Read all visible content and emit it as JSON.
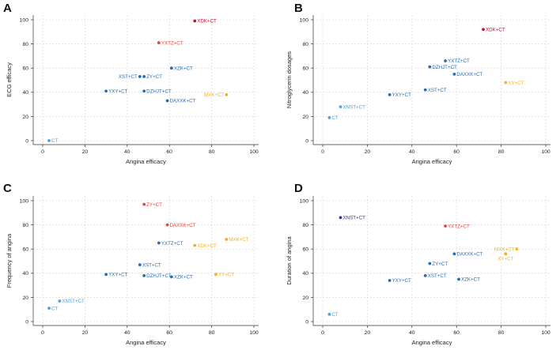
{
  "colors": {
    "red": "#c8102e",
    "orange": "#e8453c",
    "blue": "#2b6cb0",
    "lightblue": "#4fa3d9",
    "yellow": "#f0b323",
    "purple": "#4a2c8a"
  },
  "chart_data": [
    {
      "type": "scatter",
      "panel": "A",
      "xlabel": "Angina efficacy",
      "ylabel": "ECG efficacy",
      "xlim": [
        0,
        100
      ],
      "ylim": [
        0,
        100
      ],
      "xticks": [
        0,
        20,
        40,
        60,
        80,
        100
      ],
      "yticks": [
        0,
        20,
        40,
        60,
        80,
        100
      ],
      "points": [
        {
          "label": "XDK+CT",
          "x": 72,
          "y": 99,
          "color": "red",
          "side": "right"
        },
        {
          "label": "YXTZ+CT",
          "x": 55,
          "y": 81,
          "color": "orange",
          "side": "right"
        },
        {
          "label": "XZK+CT",
          "x": 61,
          "y": 60,
          "color": "blue",
          "side": "right"
        },
        {
          "label": "XST+CT",
          "x": 46,
          "y": 53,
          "color": "blue",
          "side": "left"
        },
        {
          "label": "ZY+CT",
          "x": 48,
          "y": 53,
          "color": "blue",
          "side": "right"
        },
        {
          "label": "YXY+CT",
          "x": 30,
          "y": 41,
          "color": "blue",
          "side": "right"
        },
        {
          "label": "DZHJT+CT",
          "x": 48,
          "y": 41,
          "color": "blue",
          "side": "right"
        },
        {
          "label": "DAXXK+CT",
          "x": 59,
          "y": 33,
          "color": "blue",
          "side": "right"
        },
        {
          "label": "MXK+CT",
          "x": 87,
          "y": 38,
          "color": "yellow",
          "side": "left"
        },
        {
          "label": "CT",
          "x": 3,
          "y": 0,
          "color": "lightblue",
          "side": "right"
        }
      ]
    },
    {
      "type": "scatter",
      "panel": "B",
      "xlabel": "Angina efficacy",
      "ylabel": "Nitroglycerin dosages",
      "xlim": [
        0,
        100
      ],
      "ylim": [
        0,
        100
      ],
      "xticks": [
        0,
        20,
        40,
        60,
        80,
        100
      ],
      "yticks": [
        0,
        20,
        40,
        60,
        80,
        100
      ],
      "points": [
        {
          "label": "XDK+CT",
          "x": 72,
          "y": 92,
          "color": "red",
          "side": "right"
        },
        {
          "label": "YXTZ+CT",
          "x": 55,
          "y": 66,
          "color": "blue",
          "side": "right"
        },
        {
          "label": "DZHJT+CT",
          "x": 48,
          "y": 61,
          "color": "blue",
          "side": "right"
        },
        {
          "label": "DAXXK+CT",
          "x": 59,
          "y": 55,
          "color": "blue",
          "side": "right"
        },
        {
          "label": "XY+CT",
          "x": 82,
          "y": 48,
          "color": "yellow",
          "side": "right"
        },
        {
          "label": "XST+CT",
          "x": 46,
          "y": 42,
          "color": "blue",
          "side": "right"
        },
        {
          "label": "YXY+CT",
          "x": 30,
          "y": 38,
          "color": "blue",
          "side": "right"
        },
        {
          "label": "XNST+CT",
          "x": 8,
          "y": 28,
          "color": "lightblue",
          "side": "right"
        },
        {
          "label": "CT",
          "x": 3,
          "y": 19,
          "color": "lightblue",
          "side": "right"
        }
      ]
    },
    {
      "type": "scatter",
      "panel": "C",
      "xlabel": "Angina efficacy",
      "ylabel": "Frequency of angina",
      "xlim": [
        0,
        100
      ],
      "ylim": [
        0,
        100
      ],
      "xticks": [
        0,
        20,
        40,
        60,
        80,
        100
      ],
      "yticks": [
        0,
        20,
        40,
        60,
        80,
        100
      ],
      "points": [
        {
          "label": "ZY+CT",
          "x": 48,
          "y": 97,
          "color": "orange",
          "side": "right"
        },
        {
          "label": "DAXXK+CT",
          "x": 59,
          "y": 80,
          "color": "orange",
          "side": "right"
        },
        {
          "label": "MXK+CT",
          "x": 87,
          "y": 68,
          "color": "yellow",
          "side": "right"
        },
        {
          "label": "XDK+CT",
          "x": 72,
          "y": 63,
          "color": "yellow",
          "side": "right"
        },
        {
          "label": "YXTZ+CT",
          "x": 55,
          "y": 65,
          "color": "blue",
          "side": "right"
        },
        {
          "label": "XST+CT",
          "x": 46,
          "y": 47,
          "color": "blue",
          "side": "right"
        },
        {
          "label": "YXY+CT",
          "x": 30,
          "y": 39,
          "color": "blue",
          "side": "right"
        },
        {
          "label": "DZHJT+CT",
          "x": 48,
          "y": 38,
          "color": "blue",
          "side": "right"
        },
        {
          "label": "XZK+CT",
          "x": 61,
          "y": 37,
          "color": "blue",
          "side": "right"
        },
        {
          "label": "XY+CT",
          "x": 82,
          "y": 39,
          "color": "yellow",
          "side": "right"
        },
        {
          "label": "XNST+CT",
          "x": 8,
          "y": 17,
          "color": "lightblue",
          "side": "right"
        },
        {
          "label": "CT",
          "x": 3,
          "y": 11,
          "color": "lightblue",
          "side": "right"
        }
      ]
    },
    {
      "type": "scatter",
      "panel": "D",
      "xlabel": "Angina efficacy",
      "ylabel": "Duration of angina",
      "xlim": [
        0,
        100
      ],
      "ylim": [
        0,
        100
      ],
      "xticks": [
        0,
        20,
        40,
        60,
        80,
        100
      ],
      "yticks": [
        0,
        20,
        40,
        60,
        80,
        100
      ],
      "points": [
        {
          "label": "XNST+CT",
          "x": 8,
          "y": 86,
          "color": "purple",
          "side": "right"
        },
        {
          "label": "YXTZ+CT",
          "x": 55,
          "y": 79,
          "color": "orange",
          "side": "right"
        },
        {
          "label": "MXK+CT",
          "x": 87,
          "y": 60,
          "color": "yellow",
          "side": "left"
        },
        {
          "label": "XY+CT",
          "x": 82,
          "y": 56,
          "color": "yellow",
          "side": "center"
        },
        {
          "label": "DAXXK+CT",
          "x": 59,
          "y": 56,
          "color": "blue",
          "side": "right"
        },
        {
          "label": "ZY+CT",
          "x": 48,
          "y": 48,
          "color": "blue",
          "side": "right"
        },
        {
          "label": "XST+CT",
          "x": 46,
          "y": 38,
          "color": "blue",
          "side": "right"
        },
        {
          "label": "XZK+CT",
          "x": 61,
          "y": 35,
          "color": "blue",
          "side": "right"
        },
        {
          "label": "YXY+CT",
          "x": 30,
          "y": 34,
          "color": "blue",
          "side": "right"
        },
        {
          "label": "CT",
          "x": 3,
          "y": 6,
          "color": "lightblue",
          "side": "right"
        }
      ]
    }
  ]
}
